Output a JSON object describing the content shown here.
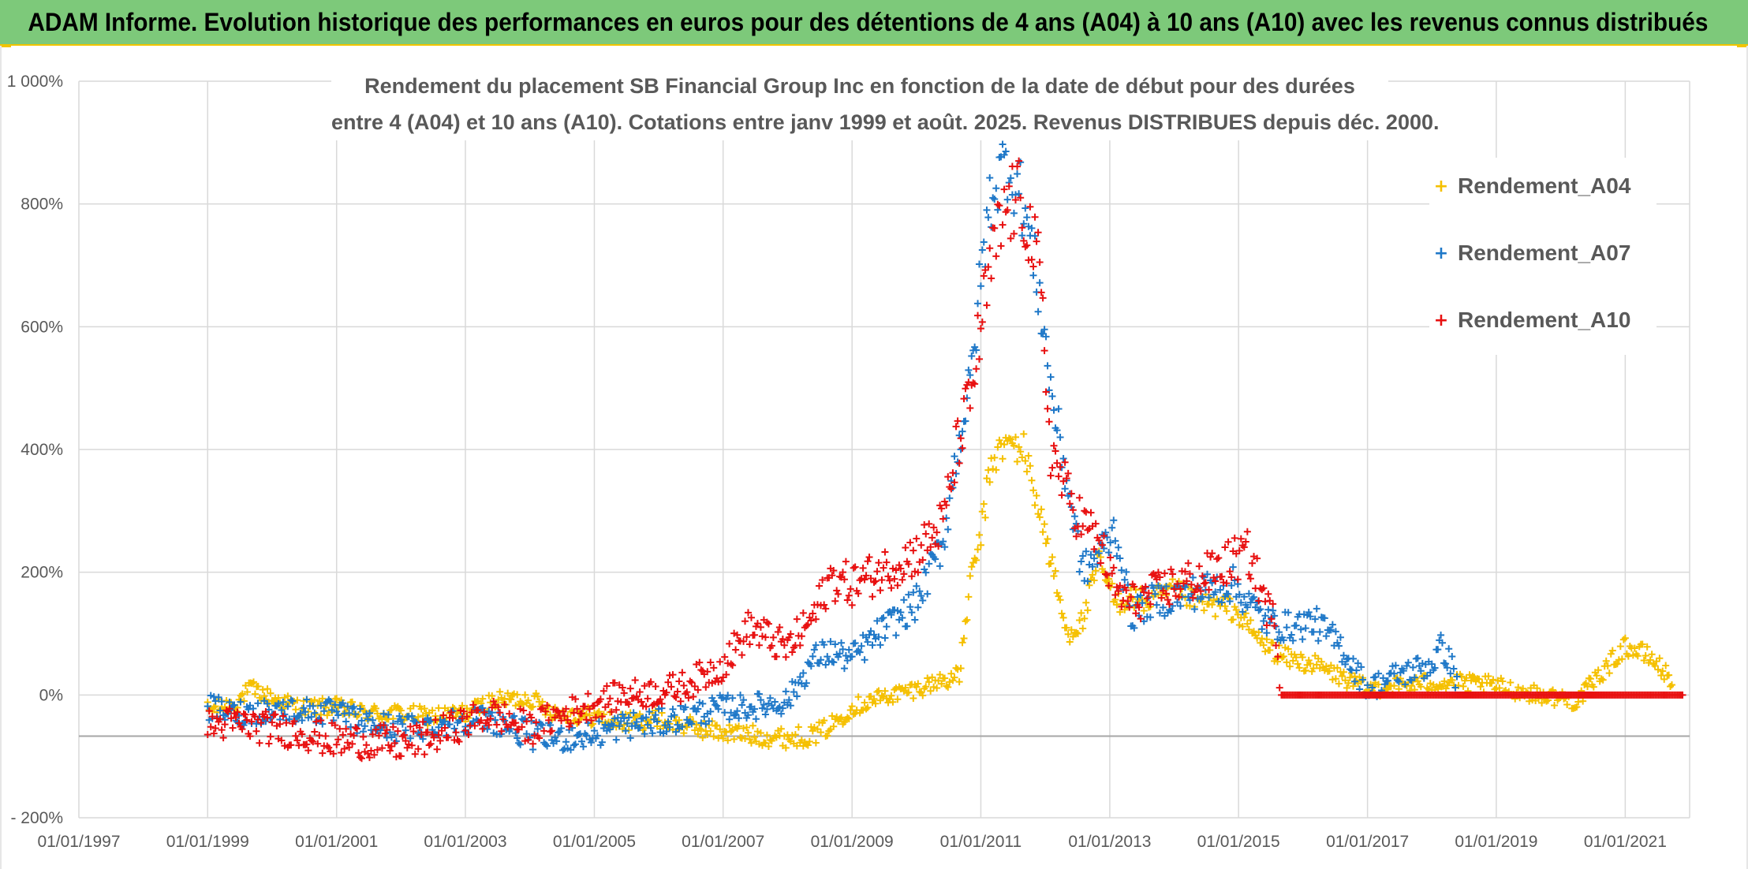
{
  "header": {
    "title": "ADAM Informe. Evolution historique des performances en euros pour des détentions de 4 ans (A04) à 10 ans (A10) avec les revenus connus distribués"
  },
  "colors": {
    "banner": "#7dc97a",
    "accent": "#f2c400",
    "A04": "#f5c000",
    "A07": "#1f78c8",
    "A10": "#e81010"
  },
  "chart_data": {
    "type": "scatter",
    "title_lines": [
      "Rendement du placement SB Financial Group Inc en fonction de la date de début pour des durées",
      "entre 4 (A04) et 10 ans (A10). Cotations entre janv 1999 et août. 2025. Revenus DISTRIBUES depuis déc. 2000."
    ],
    "y_tick_labels": [
      "1 000%",
      "800%",
      "600%",
      "400%",
      "200%",
      "0%",
      "- 200%"
    ],
    "y_tick_values": [
      1000,
      800,
      600,
      400,
      200,
      0,
      -200
    ],
    "ylim": [
      -200,
      1000
    ],
    "x_tick_labels": [
      "01/01/1997",
      "01/01/1999",
      "01/01/2001",
      "01/01/2003",
      "01/01/2005",
      "01/01/2007",
      "01/01/2009",
      "01/01/2011",
      "01/01/2013",
      "01/01/2015",
      "01/01/2017",
      "01/01/2019",
      "01/01/2021"
    ],
    "xlim": [
      "1997-01-01",
      "2022-01-01"
    ],
    "grid": true,
    "legend_position": "top-right",
    "series": [
      {
        "name": "Rendement_A04",
        "key": "A04",
        "x": [
          "1999-01-01",
          "1999-06-01",
          "1999-09-01",
          "2000-01-01",
          "2000-06-01",
          "2001-01-01",
          "2001-06-01",
          "2002-01-01",
          "2002-06-01",
          "2003-01-01",
          "2003-06-01",
          "2004-01-01",
          "2004-06-01",
          "2005-01-01",
          "2005-06-01",
          "2006-01-01",
          "2006-06-01",
          "2007-01-01",
          "2007-06-01",
          "2008-01-01",
          "2008-06-01",
          "2008-09-01",
          "2009-01-01",
          "2009-06-01",
          "2010-01-01",
          "2010-06-01",
          "2010-09-01",
          "2010-11-01",
          "2011-01-01",
          "2011-03-01",
          "2011-06-01",
          "2011-09-01",
          "2011-12-01",
          "2012-02-01",
          "2012-05-01",
          "2012-08-01",
          "2012-11-01",
          "2013-02-01",
          "2013-05-01",
          "2013-08-01",
          "2014-01-01",
          "2014-06-01",
          "2014-12-01",
          "2015-03-01",
          "2015-06-01",
          "2015-10-01",
          "2016-03-01",
          "2016-08-01",
          "2017-01-01",
          "2017-06-01",
          "2018-01-01",
          "2018-06-01",
          "2019-01-01",
          "2019-06-01",
          "2020-01-01",
          "2020-04-01",
          "2020-08-01",
          "2021-01-01",
          "2021-06-01",
          "2021-10-01"
        ],
        "y": [
          -25,
          -15,
          10,
          -5,
          -20,
          -20,
          -30,
          -30,
          -35,
          -30,
          -10,
          -5,
          -30,
          -35,
          -45,
          -40,
          -50,
          -60,
          -65,
          -70,
          -65,
          -50,
          -20,
          -5,
          10,
          25,
          30,
          180,
          260,
          380,
          410,
          400,
          300,
          220,
          100,
          120,
          220,
          150,
          160,
          150,
          170,
          150,
          140,
          110,
          80,
          60,
          50,
          30,
          10,
          15,
          20,
          20,
          15,
          5,
          -5,
          -10,
          30,
          80,
          60,
          20
        ],
        "spread": 14
      },
      {
        "name": "Rendement_A07",
        "key": "A07",
        "x": [
          "1999-01-01",
          "1999-06-01",
          "2000-01-01",
          "2000-06-01",
          "2001-01-01",
          "2001-06-01",
          "2002-01-01",
          "2002-06-01",
          "2003-01-01",
          "2003-06-01",
          "2004-01-01",
          "2004-06-01",
          "2005-01-01",
          "2005-06-01",
          "2006-01-01",
          "2006-06-01",
          "2007-01-01",
          "2007-06-01",
          "2008-01-01",
          "2008-06-01",
          "2008-09-01",
          "2009-01-01",
          "2009-06-01",
          "2010-01-01",
          "2010-06-01",
          "2010-09-01",
          "2010-11-01",
          "2011-01-01",
          "2011-03-01",
          "2011-06-01",
          "2011-09-01",
          "2011-12-01",
          "2012-02-01",
          "2012-05-01",
          "2012-08-01",
          "2012-11-01",
          "2013-02-01",
          "2013-05-01",
          "2013-08-01",
          "2014-01-01",
          "2014-06-01",
          "2014-12-01",
          "2015-03-01",
          "2015-06-01",
          "2015-10-01",
          "2016-03-01",
          "2016-08-01",
          "2017-01-01",
          "2017-06-01",
          "2018-01-01",
          "2018-03-01",
          "2018-06-01"
        ],
        "y": [
          -20,
          -30,
          -25,
          -25,
          -30,
          -45,
          -55,
          -50,
          -40,
          -40,
          -65,
          -70,
          -65,
          -50,
          -45,
          -35,
          -20,
          -20,
          -10,
          60,
          70,
          60,
          100,
          150,
          250,
          420,
          500,
          680,
          820,
          870,
          800,
          650,
          500,
          350,
          200,
          230,
          270,
          130,
          150,
          160,
          170,
          180,
          150,
          120,
          110,
          120,
          80,
          10,
          30,
          50,
          80,
          20
        ],
        "spread": 20
      },
      {
        "name": "Rendement_A10",
        "key": "A10",
        "x": [
          "1999-01-01",
          "1999-06-01",
          "2000-01-01",
          "2000-06-01",
          "2001-01-01",
          "2001-06-01",
          "2002-01-01",
          "2002-06-01",
          "2003-01-01",
          "2003-06-01",
          "2004-01-01",
          "2004-06-01",
          "2005-01-01",
          "2005-06-01",
          "2006-01-01",
          "2006-06-01",
          "2007-01-01",
          "2007-06-01",
          "2008-01-01",
          "2008-06-01",
          "2008-09-01",
          "2009-01-01",
          "2009-06-01",
          "2010-01-01",
          "2010-06-01",
          "2010-09-01",
          "2010-11-01",
          "2011-01-01",
          "2011-03-01",
          "2011-06-01",
          "2011-09-01",
          "2011-12-01",
          "2012-02-01",
          "2012-05-01",
          "2012-08-01",
          "2012-11-01",
          "2013-02-01",
          "2013-05-01",
          "2013-08-01",
          "2014-01-01",
          "2014-06-01",
          "2014-12-01",
          "2015-03-01",
          "2015-06-01",
          "2015-08-01",
          "2015-09-01",
          "2016-06-01",
          "2017-06-01",
          "2018-06-01",
          "2019-06-01",
          "2020-06-01",
          "2021-06-01",
          "2021-12-01"
        ],
        "y": [
          -50,
          -45,
          -55,
          -60,
          -75,
          -75,
          -80,
          -70,
          -45,
          -30,
          -55,
          -35,
          -15,
          0,
          5,
          15,
          50,
          110,
          75,
          130,
          190,
          180,
          200,
          230,
          280,
          420,
          480,
          600,
          700,
          800,
          800,
          680,
          400,
          330,
          280,
          250,
          170,
          150,
          160,
          180,
          190,
          220,
          230,
          150,
          110,
          0,
          0,
          0,
          0,
          0,
          0,
          0,
          0
        ],
        "spread": 24
      }
    ]
  }
}
